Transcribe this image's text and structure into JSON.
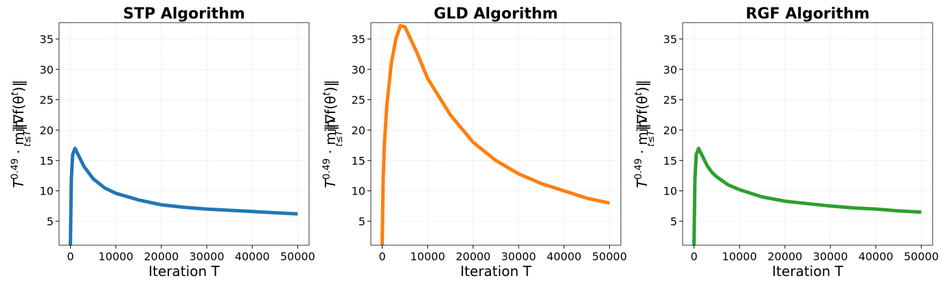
{
  "chart_data": [
    {
      "type": "line",
      "title": "STP Algorithm",
      "xlabel": "Iteration T",
      "ylabel": {
        "base": "T",
        "exp": "0.49",
        "mid": " · min",
        "sub": "t≤T",
        "norm": "‖∇f(θ",
        "sup": "t",
        "end": ")‖"
      },
      "x": [
        0,
        200,
        500,
        1000,
        2000,
        3000,
        4000,
        5000,
        7500,
        10000,
        15000,
        20000,
        25000,
        30000,
        35000,
        40000,
        45000,
        50000
      ],
      "series": [
        {
          "name": "STP",
          "color": "#1f77b4",
          "values": [
            1,
            12,
            16,
            17,
            15.5,
            14,
            13,
            12,
            10.5,
            9.6,
            8.5,
            7.7,
            7.3,
            7.0,
            6.8,
            6.6,
            6.4,
            6.2
          ]
        }
      ],
      "xlim": [
        -2500,
        52500
      ],
      "ylim": [
        1.05,
        37.7
      ],
      "xticks": [
        0,
        10000,
        20000,
        30000,
        40000,
        50000
      ],
      "yticks": [
        5,
        10,
        15,
        20,
        25,
        30,
        35
      ],
      "grid": true
    },
    {
      "type": "line",
      "title": "GLD Algorithm",
      "xlabel": "Iteration T",
      "ylabel": {
        "base": "T",
        "exp": "0.49",
        "mid": " · min",
        "sub": "t≤T",
        "norm": "‖∇f(θ",
        "sup": "t",
        "end": ")‖"
      },
      "x": [
        0,
        200,
        500,
        1000,
        2000,
        3000,
        4000,
        5000,
        7500,
        10000,
        15000,
        20000,
        25000,
        30000,
        35000,
        40000,
        45000,
        50000
      ],
      "series": [
        {
          "name": "GLD",
          "color": "#ff7f0e",
          "values": [
            1,
            12,
            18,
            24,
            31,
            35,
            37.2,
            37,
            33,
            28.5,
            22.5,
            18,
            15,
            12.8,
            11.2,
            10,
            8.8,
            8
          ]
        }
      ],
      "xlim": [
        -2500,
        52500
      ],
      "ylim": [
        1.05,
        37.7
      ],
      "xticks": [
        0,
        10000,
        20000,
        30000,
        40000,
        50000
      ],
      "yticks": [
        5,
        10,
        15,
        20,
        25,
        30,
        35
      ],
      "grid": true
    },
    {
      "type": "line",
      "title": "RGF Algorithm",
      "xlabel": "Iteration T",
      "ylabel": {
        "base": "T",
        "exp": "0.49",
        "mid": " · min",
        "sub": "t≤T",
        "norm": "‖∇f(θ",
        "sup": "t",
        "end": ")‖"
      },
      "x": [
        0,
        200,
        500,
        1000,
        2000,
        3000,
        4000,
        5000,
        7500,
        10000,
        15000,
        20000,
        25000,
        30000,
        35000,
        40000,
        45000,
        50000
      ],
      "series": [
        {
          "name": "RGF",
          "color": "#2ca02c",
          "values": [
            1,
            12,
            16,
            17,
            15.5,
            14,
            13,
            12.3,
            11,
            10.2,
            9,
            8.3,
            7.9,
            7.5,
            7.2,
            7.0,
            6.7,
            6.5
          ]
        }
      ],
      "xlim": [
        -2500,
        52500
      ],
      "ylim": [
        1.05,
        37.7
      ],
      "xticks": [
        0,
        10000,
        20000,
        30000,
        40000,
        50000
      ],
      "yticks": [
        5,
        10,
        15,
        20,
        25,
        30,
        35
      ],
      "grid": true
    }
  ]
}
